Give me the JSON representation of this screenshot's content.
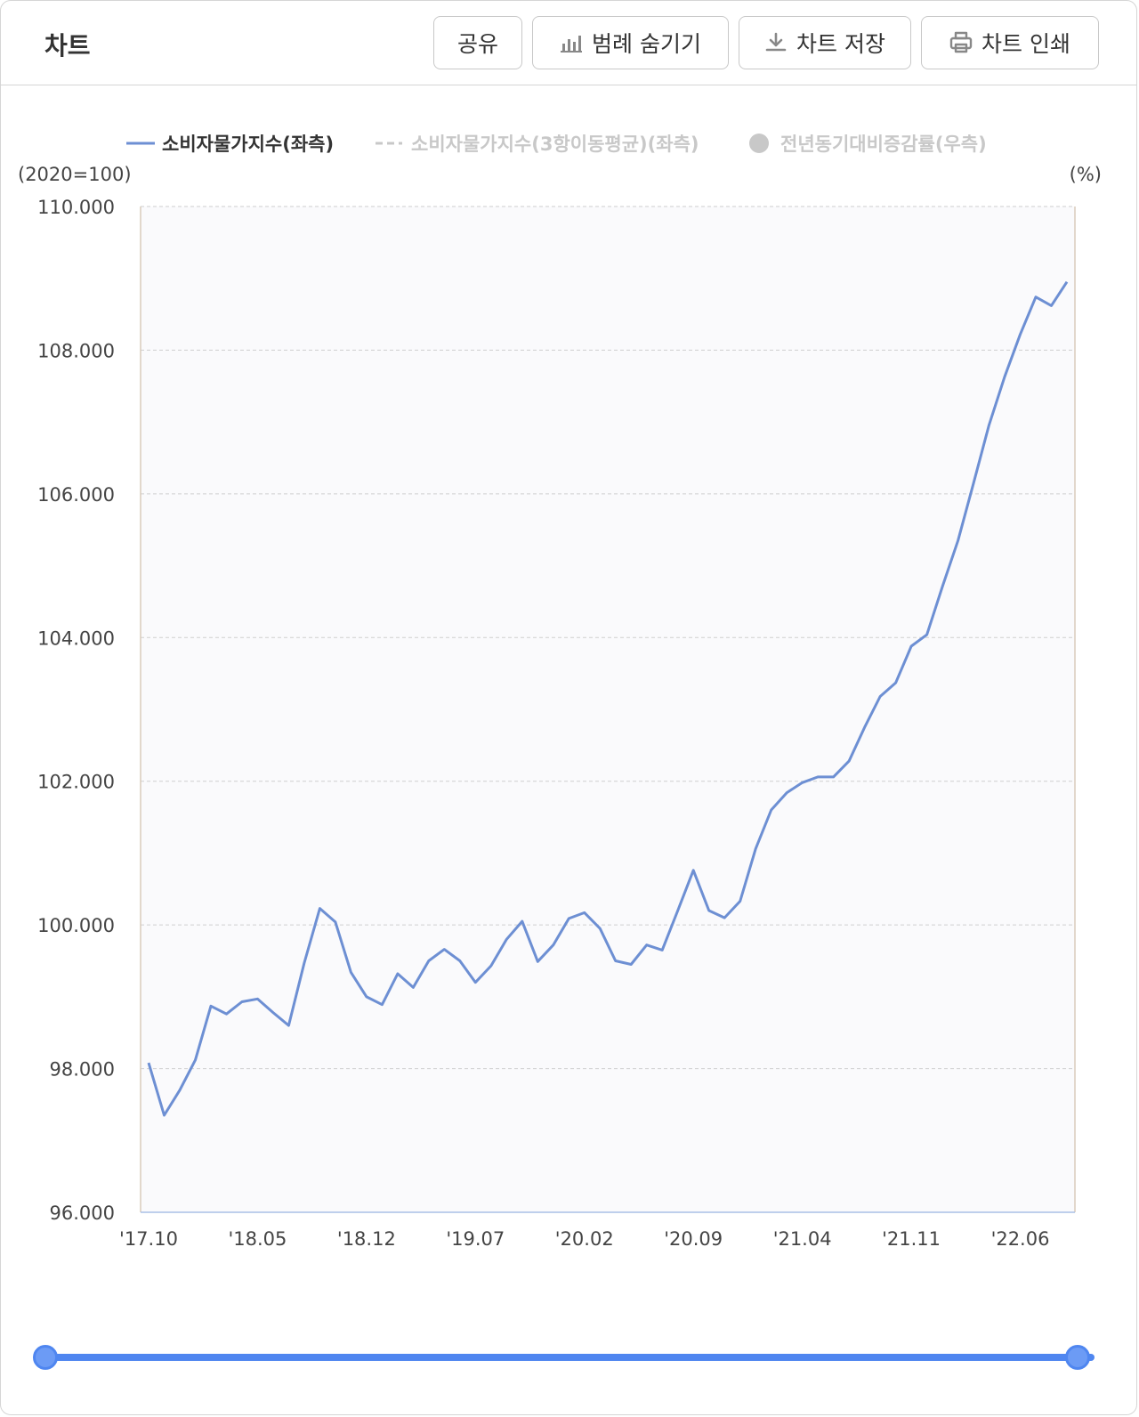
{
  "header": {
    "title": "차트",
    "buttons": {
      "share": "공유",
      "legend": "범례 숨기기",
      "save": "차트 저장",
      "print": "차트 인쇄"
    }
  },
  "chart_data": {
    "type": "line",
    "title": "",
    "ylabel_left": "(2020=100)",
    "ylabel_right": "(%)",
    "ylim": [
      96,
      110
    ],
    "yticks": [
      96,
      98,
      100,
      102,
      104,
      106,
      108,
      110
    ],
    "ytick_labels": [
      "96.000",
      "98.000",
      "100.000",
      "102.000",
      "104.000",
      "106.000",
      "108.000",
      "110.000"
    ],
    "grid": true,
    "legend": [
      {
        "name": "소비자물가지수(좌측)",
        "style": "line",
        "active": true
      },
      {
        "name": "소비자물가지수(3항이동평균)(좌측)",
        "style": "dashed",
        "active": false
      },
      {
        "name": "전년동기대비증감률(우측)",
        "style": "dot",
        "active": false
      }
    ],
    "x_tick_labels": [
      "'17.10",
      "'18.05",
      "'18.12",
      "'19.07",
      "'20.02",
      "'20.09",
      "'21.04",
      "'21.11",
      "'22.06"
    ],
    "series": [
      {
        "name": "소비자물가지수(좌측)",
        "color": "#6d8fd3",
        "values": [
          98.08,
          97.35,
          97.7,
          98.12,
          98.87,
          98.76,
          98.93,
          98.97,
          98.78,
          98.6,
          99.47,
          100.23,
          100.04,
          99.34,
          99.0,
          98.89,
          99.32,
          99.13,
          99.5,
          99.66,
          99.5,
          99.2,
          99.43,
          99.8,
          100.05,
          99.49,
          99.72,
          100.09,
          100.17,
          99.95,
          99.5,
          99.45,
          99.72,
          99.65,
          100.2,
          100.76,
          100.2,
          100.1,
          100.33,
          101.06,
          101.6,
          101.84,
          101.98,
          102.06,
          102.06,
          102.28,
          102.75,
          103.18,
          103.37,
          103.88,
          104.04,
          104.71,
          105.35,
          106.15,
          106.96,
          107.63,
          108.22,
          108.74,
          108.62,
          108.95
        ]
      }
    ],
    "colors": {
      "accent": "#4f86f0",
      "inactive": "#c8c8c8",
      "plot_bg": "#fafafc",
      "axis": "#d9cbbb"
    }
  }
}
